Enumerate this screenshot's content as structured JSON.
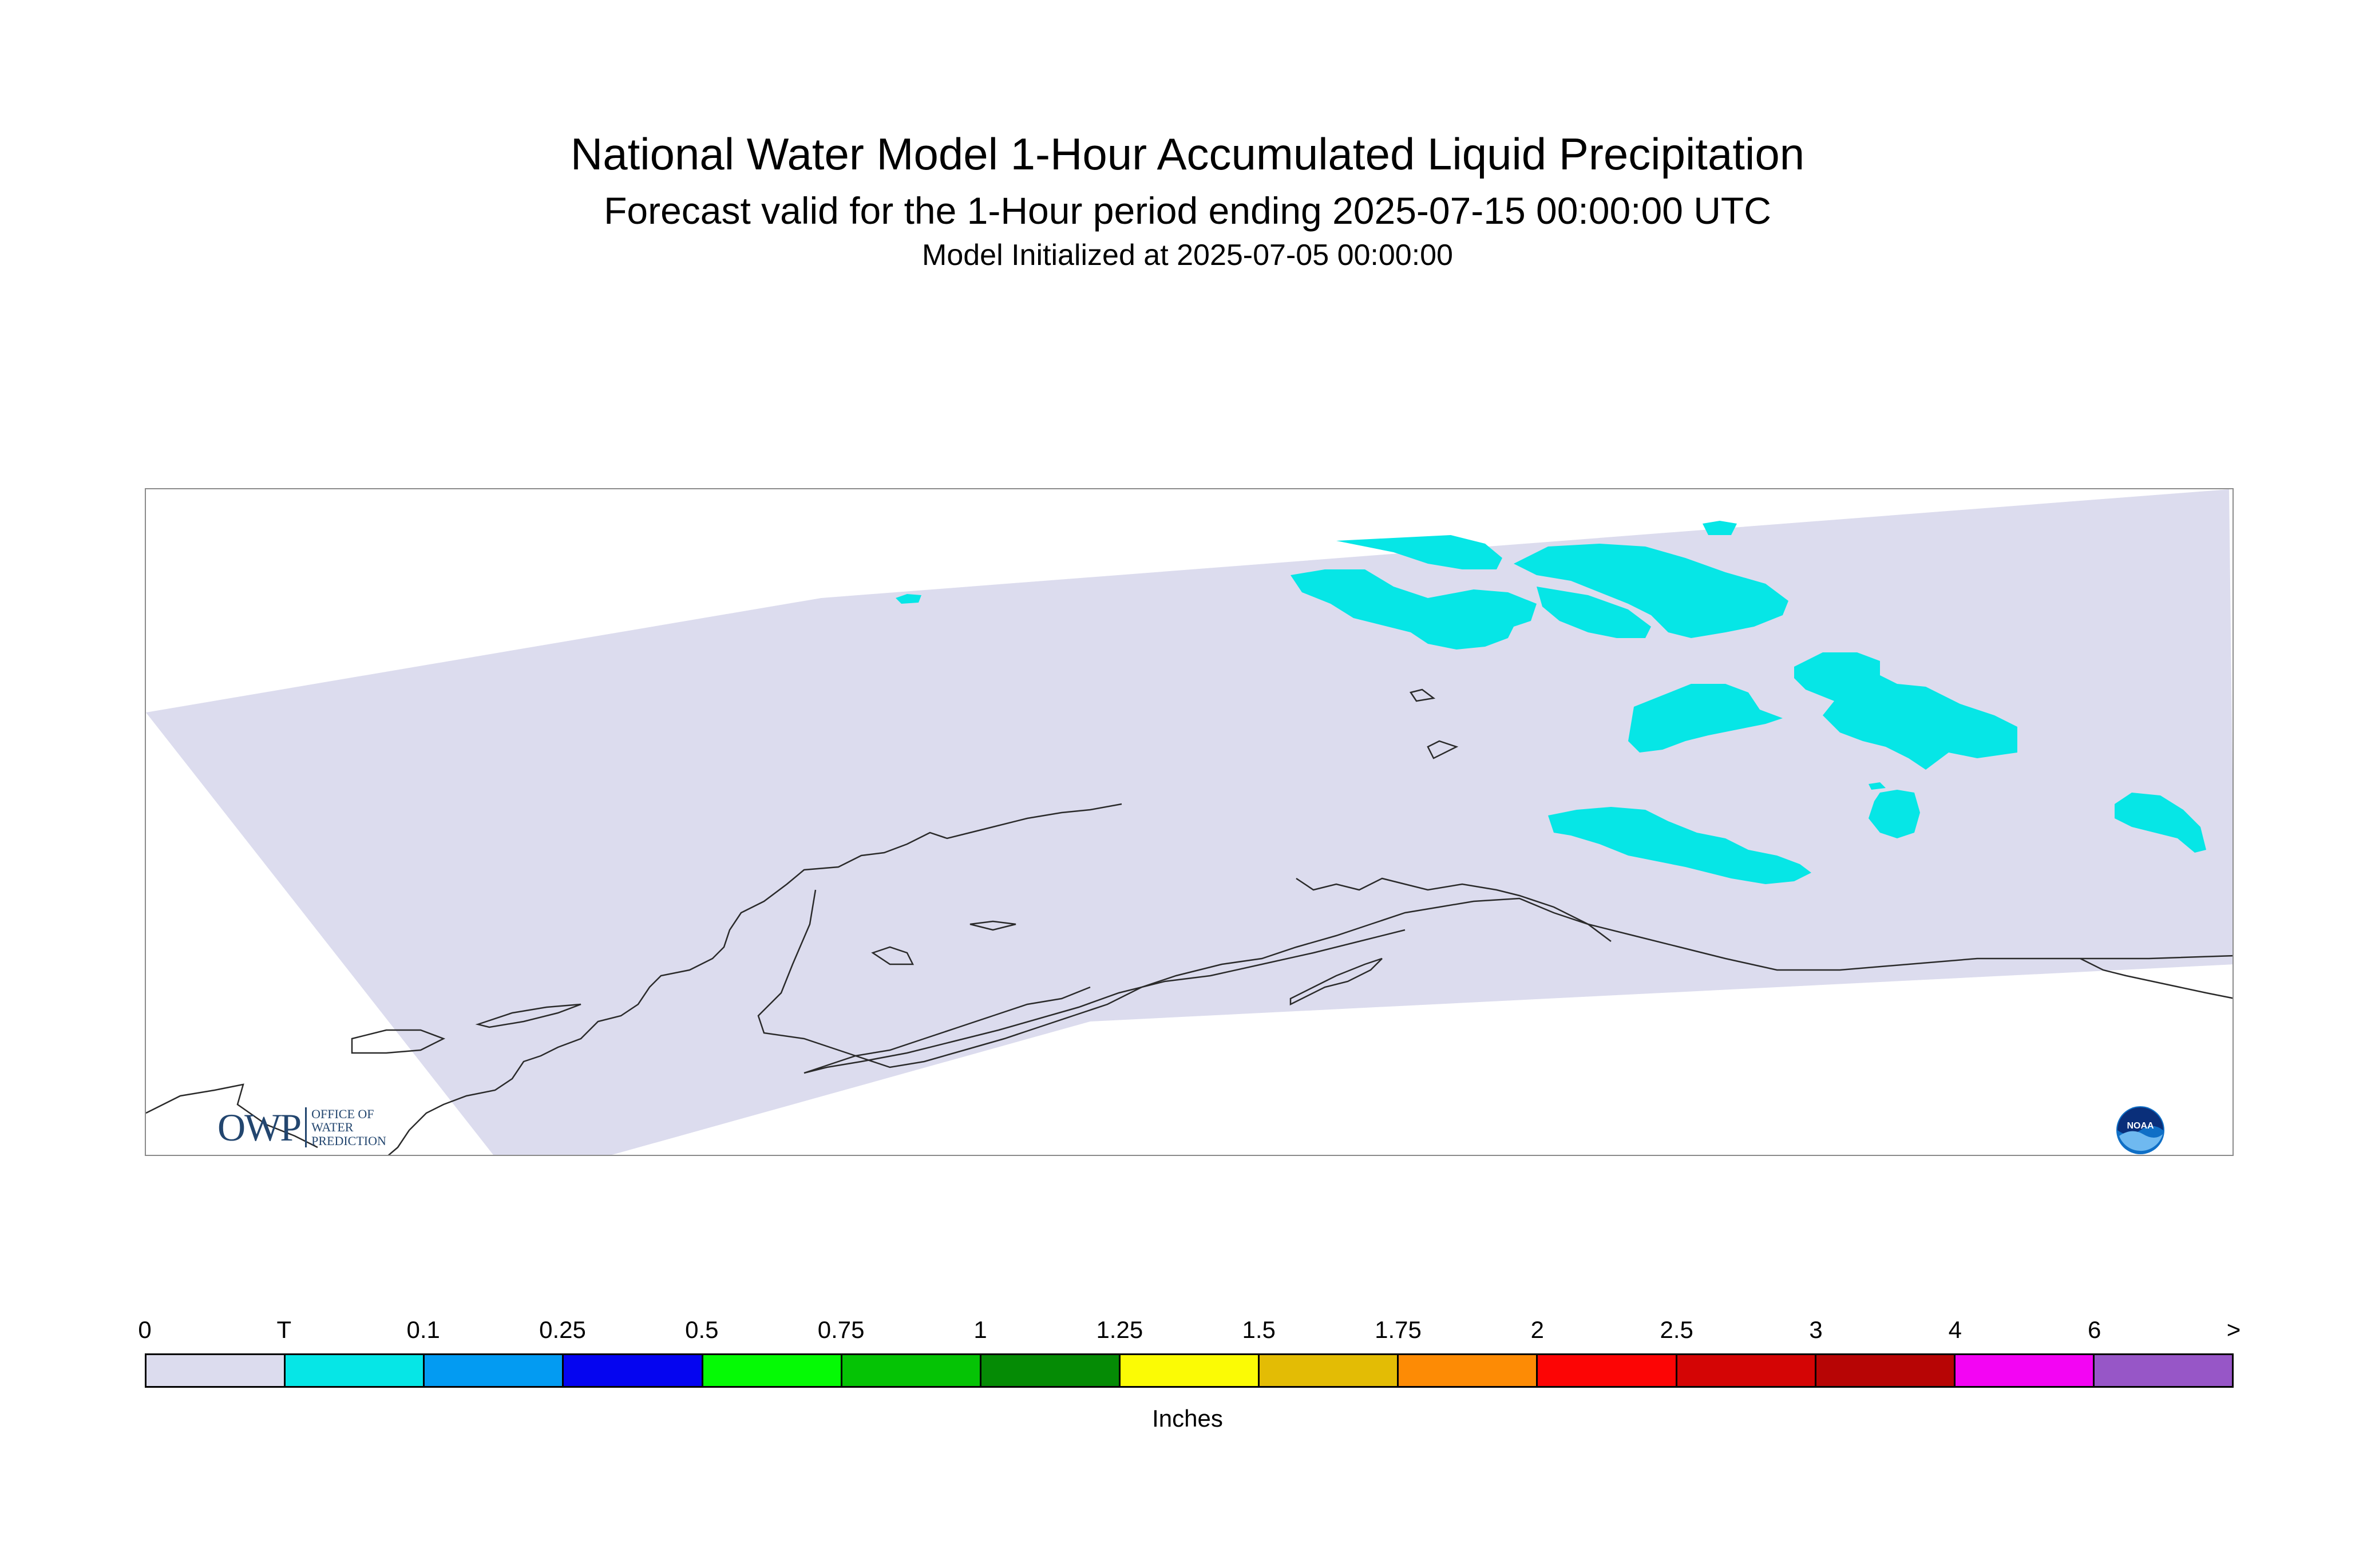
{
  "title": "National Water Model 1-Hour Accumulated Liquid Precipitation",
  "subtitle": "Forecast valid for the 1-Hour period ending 2025-07-15 00:00:00 UTC",
  "init_line": "Model Initialized at 2025-07-05 00:00:00",
  "logos": {
    "owp": {
      "word": "OWP",
      "sub_lines": [
        "OFFICE OF",
        "WATER",
        "PREDICTION"
      ]
    },
    "noaa": {
      "text": "NOAA"
    }
  },
  "colors": {
    "domain_fill": "#dcdcee",
    "precip_fill": "#06e6e6",
    "coastline": "#2a2a2a"
  },
  "legend": {
    "ticks": [
      "0",
      "T",
      "0.1",
      "0.25",
      "0.5",
      "0.75",
      "1",
      "1.25",
      "1.5",
      "1.75",
      "2",
      "2.5",
      "3",
      "4",
      "6",
      ">"
    ],
    "colors": [
      "#dcdcee",
      "#06e6e6",
      "#039bf2",
      "#0505f0",
      "#05fa05",
      "#05c305",
      "#058b05",
      "#fbfb05",
      "#e3bc05",
      "#fd8b05",
      "#fc0505",
      "#d40505",
      "#b70505",
      "#f305f3",
      "#9756c7"
    ],
    "units": "Inches"
  }
}
